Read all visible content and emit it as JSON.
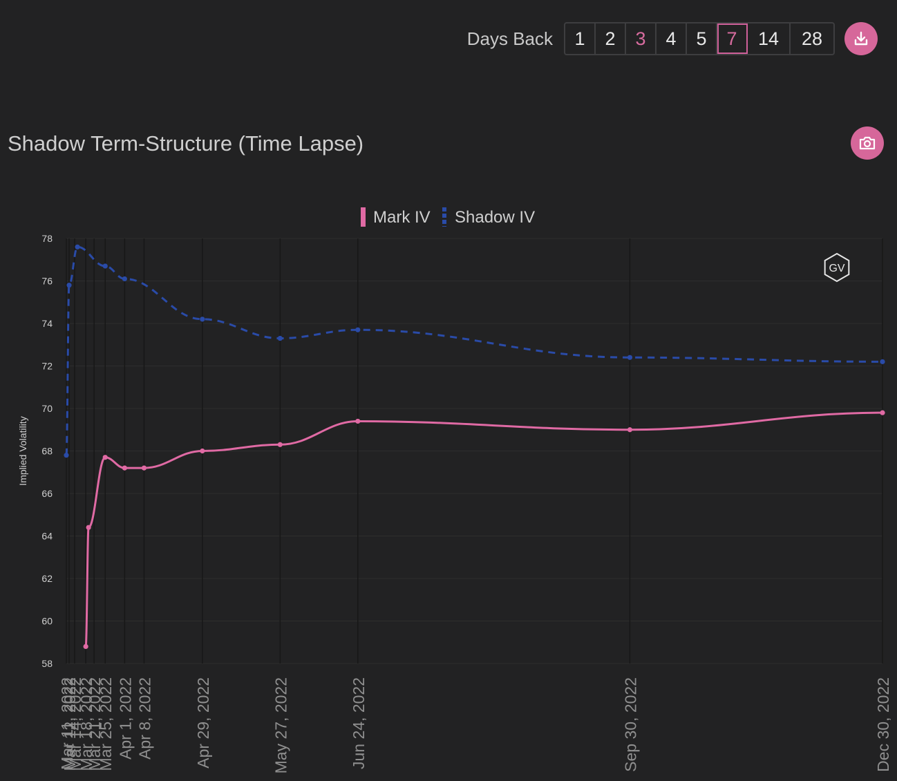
{
  "toolbar": {
    "days_back_label": "Days Back",
    "options": [
      {
        "label": "1",
        "state": "normal"
      },
      {
        "label": "2",
        "state": "normal"
      },
      {
        "label": "3",
        "state": "accent"
      },
      {
        "label": "4",
        "state": "normal"
      },
      {
        "label": "5",
        "state": "normal"
      },
      {
        "label": "7",
        "state": "selected"
      },
      {
        "label": "14",
        "state": "normal"
      },
      {
        "label": "28",
        "state": "normal"
      }
    ],
    "download_icon": "download-icon"
  },
  "title": "Shadow Term-Structure (Time Lapse)",
  "camera_icon": "camera-icon",
  "watermark": "GV",
  "colors": {
    "background": "#222223",
    "accent": "#d6679a",
    "mark_iv": "#e06aa4",
    "shadow_iv": "#2a4ba8",
    "grid": "#2e2e2e"
  },
  "chart_data": {
    "type": "line",
    "ylabel": "Implied Volatility",
    "ylim": [
      58,
      78
    ],
    "yticks": [
      58,
      60,
      62,
      64,
      66,
      68,
      70,
      72,
      74,
      76,
      78
    ],
    "x_tick_labels": [
      "Mar 11, 2022",
      "Mar 12, 2022",
      "Mar 14, 2022",
      "Mar 18, 2022",
      "Mar 21, 2022",
      "Mar 25, 2022",
      "Apr 1, 2022",
      "Apr 8, 2022",
      "Apr 29, 2022",
      "May 27, 2022",
      "Jun 24, 2022",
      "Sep 30, 2022",
      "Dec 30, 2022"
    ],
    "x_range": [
      "2022-03-11",
      "2022-12-30"
    ],
    "legend_position": "top",
    "series": [
      {
        "name": "Mark IV",
        "style": "solid",
        "points": [
          {
            "x": "2022-03-18",
            "y": 58.8
          },
          {
            "x": "2022-03-19",
            "y": 64.4
          },
          {
            "x": "2022-03-25",
            "y": 67.7
          },
          {
            "x": "2022-04-01",
            "y": 67.2
          },
          {
            "x": "2022-04-08",
            "y": 67.2
          },
          {
            "x": "2022-04-29",
            "y": 68.0
          },
          {
            "x": "2022-05-27",
            "y": 68.3
          },
          {
            "x": "2022-06-24",
            "y": 69.4
          },
          {
            "x": "2022-09-30",
            "y": 69.0
          },
          {
            "x": "2022-12-30",
            "y": 69.8
          }
        ]
      },
      {
        "name": "Shadow IV",
        "style": "dashed",
        "points": [
          {
            "x": "2022-03-11",
            "y": 67.8
          },
          {
            "x": "2022-03-12",
            "y": 75.8
          },
          {
            "x": "2022-03-15",
            "y": 77.6
          },
          {
            "x": "2022-03-25",
            "y": 76.7
          },
          {
            "x": "2022-04-01",
            "y": 76.1
          },
          {
            "x": "2022-04-29",
            "y": 74.2
          },
          {
            "x": "2022-05-27",
            "y": 73.3
          },
          {
            "x": "2022-06-24",
            "y": 73.7
          },
          {
            "x": "2022-09-30",
            "y": 72.4
          },
          {
            "x": "2022-12-30",
            "y": 72.2
          }
        ]
      }
    ]
  }
}
